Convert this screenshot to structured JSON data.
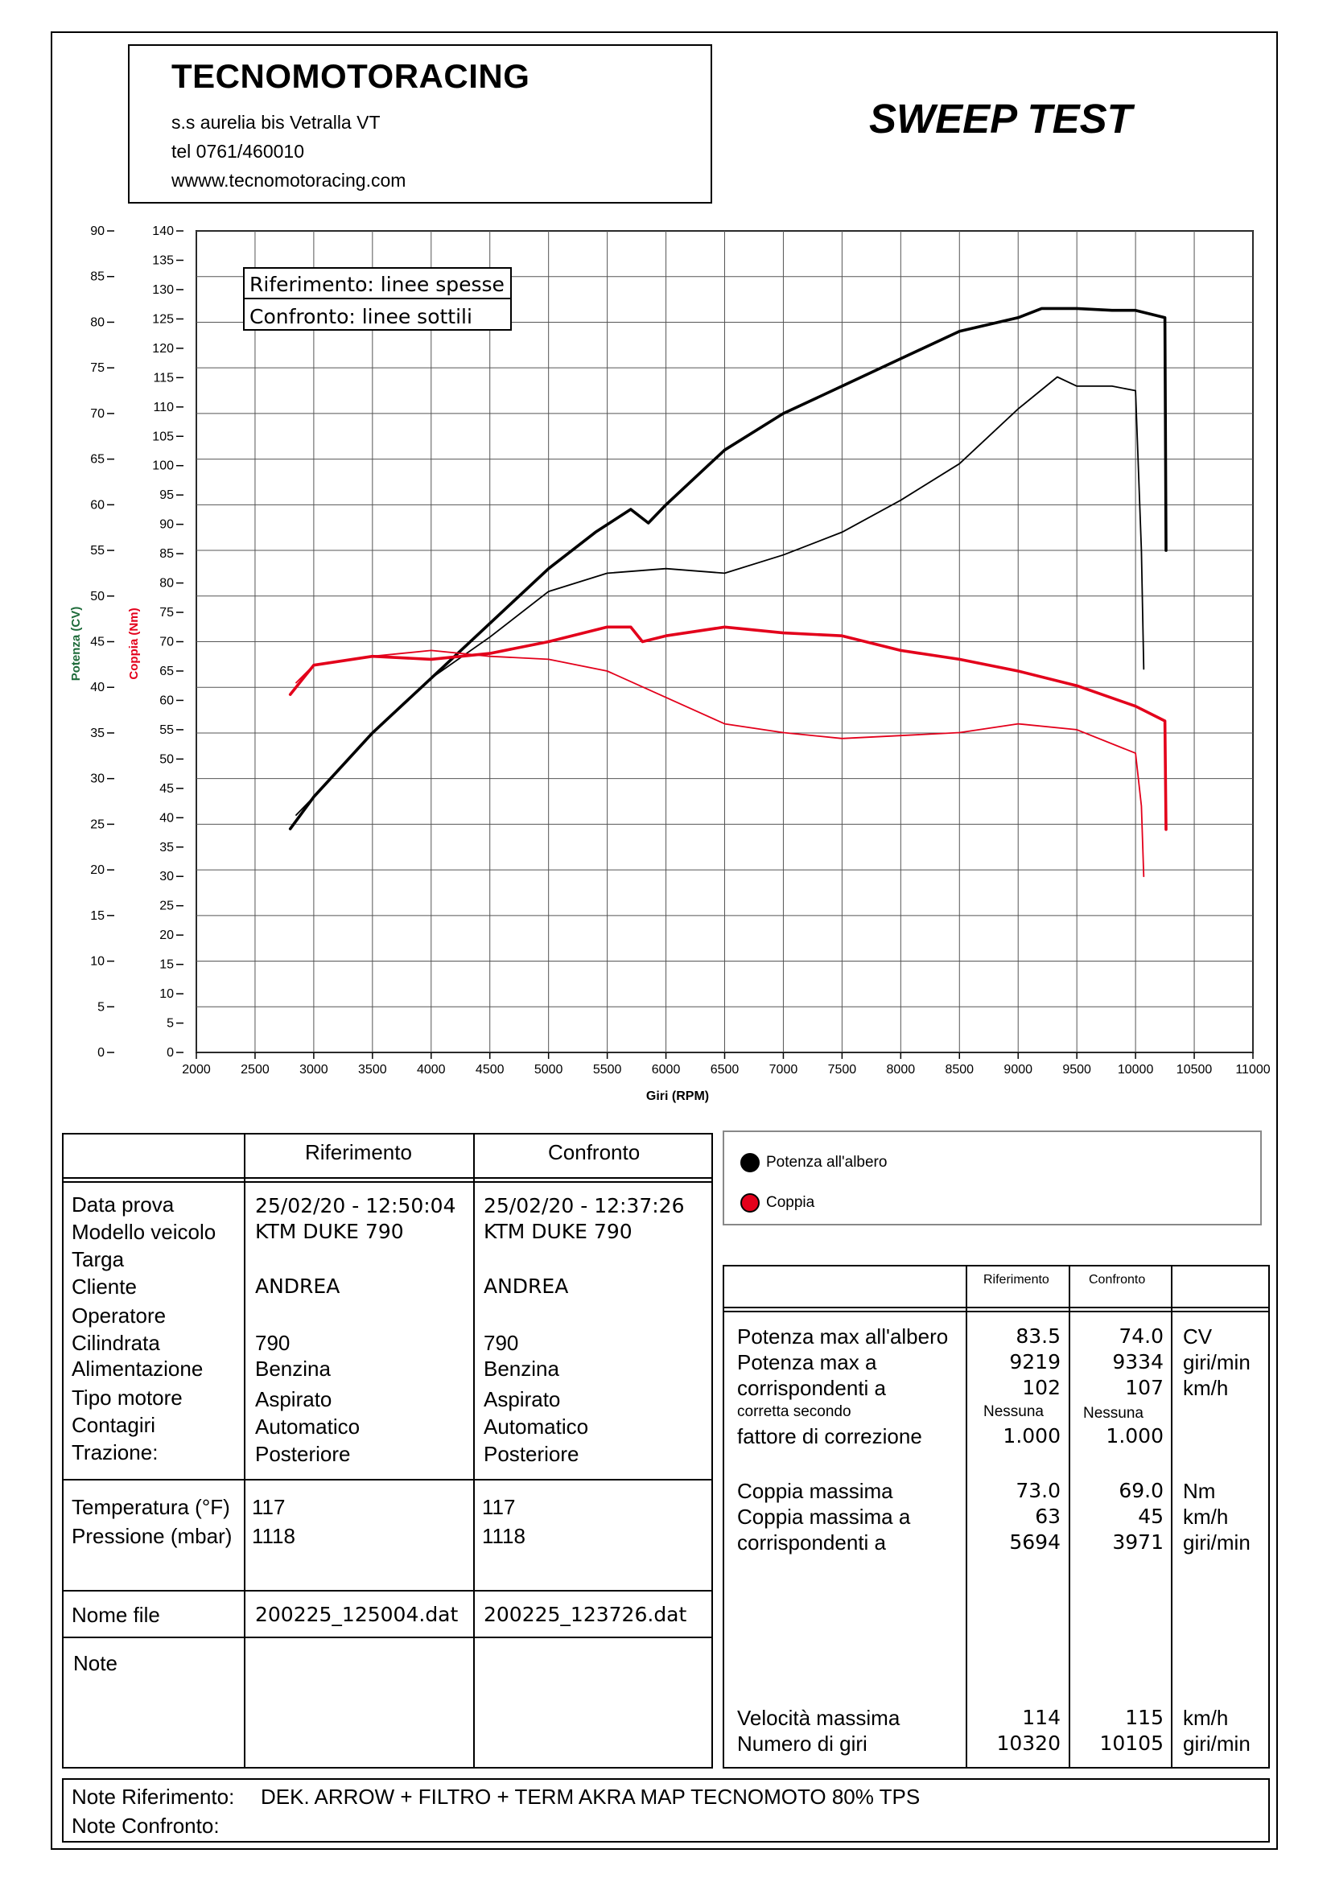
{
  "header": {
    "company": "TECNOMOTORACING",
    "address": "s.s aurelia bis  Vetralla  VT",
    "phone": "tel 0761/460010",
    "website": "wwww.tecnomotoracing.com",
    "test_title": "SWEEP TEST"
  },
  "chart_data": {
    "type": "line",
    "xlabel": "Giri (RPM)",
    "ylabel_left": "Potenza (CV)",
    "ylabel_right": "Coppia (Nm)",
    "x_range": [
      2000,
      11000
    ],
    "x_ticks": [
      "2000",
      "2500",
      "3000",
      "3500",
      "4000",
      "4500",
      "5000",
      "5500",
      "6000",
      "6500",
      "7000",
      "7500",
      "8000",
      "8500",
      "9000",
      "9500",
      "10000",
      "10500",
      "11000"
    ],
    "potenza_range": [
      0,
      90
    ],
    "potenza_ticks": [
      "0",
      "5",
      "10",
      "15",
      "20",
      "25",
      "30",
      "35",
      "40",
      "45",
      "50",
      "55",
      "60",
      "65",
      "70",
      "75",
      "80",
      "85",
      "90"
    ],
    "coppia_range": [
      0,
      140
    ],
    "coppia_ticks": [
      "0",
      "5",
      "10",
      "15",
      "20",
      "25",
      "30",
      "35",
      "40",
      "45",
      "50",
      "55",
      "60",
      "65",
      "70",
      "75",
      "80",
      "85",
      "90",
      "95",
      "100",
      "105",
      "110",
      "115",
      "120",
      "125",
      "130",
      "135",
      "140"
    ],
    "grid": true,
    "overlay_legend": [
      "Riferimento: linee spesse",
      "Confronto: linee sottili"
    ],
    "series": [
      {
        "name": "Potenza all'albero",
        "run": "Riferimento",
        "axis": "potenza",
        "color": "#000000",
        "x": [
          2800,
          3000,
          3500,
          4000,
          4500,
          5000,
          5400,
          5700,
          5850,
          6000,
          6500,
          7000,
          7500,
          8000,
          8500,
          9000,
          9200,
          9500,
          9800,
          10000,
          10250,
          10260
        ],
        "y": [
          24.5,
          28,
          35,
          41,
          47,
          53,
          57,
          59.5,
          58,
          60,
          66,
          70,
          73,
          76,
          79,
          80.5,
          81.5,
          81.5,
          81.3,
          81.3,
          80.5,
          55
        ]
      },
      {
        "name": "Potenza all'albero",
        "run": "Confronto",
        "axis": "potenza",
        "color": "#000000",
        "x": [
          2850,
          3000,
          3500,
          4000,
          4500,
          5000,
          5500,
          6000,
          6500,
          7000,
          7500,
          8000,
          8500,
          9000,
          9334,
          9500,
          9800,
          10000,
          10050,
          10070
        ],
        "y": [
          26,
          28,
          35,
          41,
          45.5,
          50.5,
          52.5,
          53,
          52.5,
          54.5,
          57,
          60.5,
          64.5,
          70.5,
          74,
          73,
          73,
          72.5,
          55,
          42
        ]
      },
      {
        "name": "Coppia",
        "run": "Riferimento",
        "axis": "coppia",
        "color": "#e3001b",
        "x": [
          2800,
          3000,
          3500,
          4000,
          4500,
          5000,
          5500,
          5700,
          5800,
          6000,
          6500,
          7000,
          7500,
          8000,
          8500,
          9000,
          9500,
          10000,
          10250,
          10260
        ],
        "y": [
          61,
          66,
          67.5,
          67,
          68,
          70,
          72.5,
          72.5,
          70,
          71,
          72.5,
          71.5,
          71,
          68.5,
          67,
          65,
          62.5,
          59,
          56.5,
          38
        ]
      },
      {
        "name": "Coppia",
        "run": "Confronto",
        "axis": "coppia",
        "color": "#e3001b",
        "x": [
          2850,
          3000,
          3500,
          4000,
          4500,
          5000,
          5500,
          6000,
          6500,
          7000,
          7500,
          8000,
          8500,
          9000,
          9500,
          10000,
          10050,
          10070
        ],
        "y": [
          63,
          66,
          67.5,
          68.5,
          67.5,
          67,
          65,
          60.5,
          56,
          54.5,
          53.5,
          54,
          54.5,
          56,
          55,
          51,
          42,
          30
        ]
      }
    ]
  },
  "legend": {
    "potenza": "Potenza all'albero",
    "coppia": "Coppia"
  },
  "info": {
    "col_ref": "Riferimento",
    "col_cmp": "Confronto",
    "labels": [
      "Data prova",
      "Modello veicolo",
      "Targa",
      "Cliente",
      "Operatore",
      "Cilindrata",
      "Alimentazione",
      "Tipo motore",
      "Contagiri",
      "Trazione:"
    ],
    "ref": {
      "data": "25/02/20 - 12:50:04",
      "modello": "KTM DUKE 790",
      "cliente": "ANDREA",
      "cilindrata": "790",
      "alimentazione": "Benzina",
      "tipo": "Aspirato",
      "contagiri": "Automatico",
      "trazione": "Posteriore"
    },
    "cmp": {
      "data": "25/02/20 - 12:37:26",
      "modello": "KTM DUKE 790",
      "cliente": "ANDREA",
      "cilindrata": "790",
      "alimentazione": "Benzina",
      "tipo": "Aspirato",
      "contagiri": "Automatico",
      "trazione": "Posteriore"
    },
    "temp_label": "Temperatura (°F)",
    "press_label": "Pressione (mbar)",
    "temp_ref": "117",
    "temp_cmp": "117",
    "press_ref": "1118",
    "press_cmp": "1118",
    "file_label": "Nome file",
    "file_ref": "200225_125004.dat",
    "file_cmp": "200225_123726.dat",
    "note_label": "Note"
  },
  "results": {
    "col_ref": "Riferimento",
    "col_cmp": "Confronto",
    "pot_label1": "Potenza max all'albero",
    "pot_label2": "Potenza max a",
    "pot_label3": "corrispondenti a",
    "corr_label1": "corretta secondo",
    "corr_label2": "fattore di correzione",
    "pot_ref": "83.5",
    "pot_cmp": "74.0",
    "pot_unit": "CV",
    "rpm_ref": "9219",
    "rpm_cmp": "9334",
    "rpm_unit": "giri/min",
    "spd_ref": "102",
    "spd_cmp": "107",
    "spd_unit": "km/h",
    "corr_ref": "Nessuna",
    "corr_cmp": "Nessuna",
    "fat_ref": "1.000",
    "fat_cmp": "1.000",
    "cop_label1": "Coppia massima",
    "cop_label2": "Coppia massima a",
    "cop_label3": "corrispondenti a",
    "cop_ref": "73.0",
    "cop_cmp": "69.0",
    "cop_unit": "Nm",
    "cspd_ref": "63",
    "cspd_cmp": "45",
    "cspd_unit": "km/h",
    "crpm_ref": "5694",
    "crpm_cmp": "3971",
    "crpm_unit": "giri/min",
    "vel_label": "Velocità massima",
    "giri_label": "Numero di giri",
    "vel_ref": "114",
    "vel_cmp": "115",
    "vel_unit": "km/h",
    "giri_ref": "10320",
    "giri_cmp": "10105",
    "giri_unit": "giri/min"
  },
  "notes": {
    "ref_label": "Note Riferimento:",
    "ref_text": "DEK. ARROW + FILTRO  + TERM AKRA MAP TECNOMOTO 80% TPS",
    "cmp_label": "Note Confronto:"
  }
}
